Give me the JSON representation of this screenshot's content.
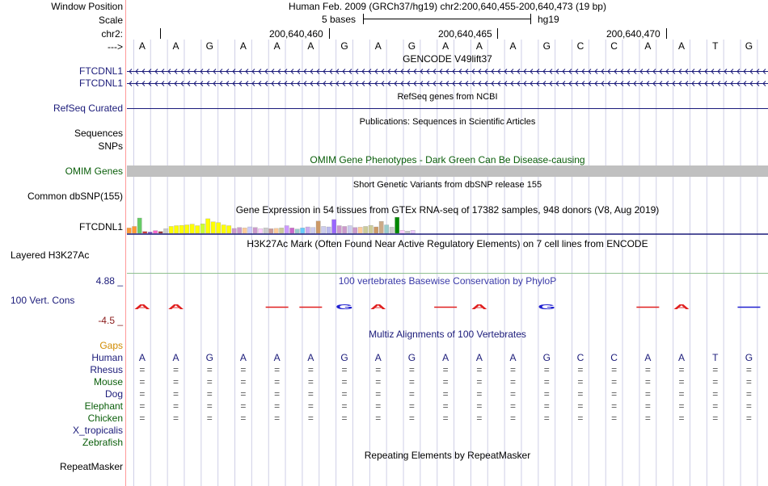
{
  "header": {
    "window_position_label": "Window Position",
    "window_position_text": "Human Feb. 2009 (GRCh37/hg19)   chr2:200,640,455-200,640,473 (19 bp)",
    "scale_label": "Scale",
    "scale_text": "5 bases",
    "scale_assembly": "hg19",
    "chrom_label": "chr2:",
    "coords": [
      "200,640,460",
      "200,640,465",
      "200,640,470"
    ],
    "strand_label": "--->"
  },
  "bases": [
    "A",
    "A",
    "G",
    "A",
    "A",
    "A",
    "G",
    "A",
    "G",
    "A",
    "A",
    "A",
    "G",
    "C",
    "C",
    "A",
    "A",
    "T",
    "G"
  ],
  "tracks": {
    "gencode_title": "GENCODE V49lift37",
    "gencode_genes": [
      "FTCDNL1",
      "FTCDNL1"
    ],
    "refseq_title": "RefSeq genes from NCBI",
    "refseq_label": "RefSeq Curated",
    "publications_title": "Publications: Sequences in Scientific Articles",
    "sequences_label": "Sequences",
    "snps_label": "SNPs",
    "omim_title": "OMIM Gene Phenotypes - Dark Green Can Be Disease-causing",
    "omim_label": "OMIM Genes",
    "dbsnp_title": "Short Genetic Variants from dbSNP release 155",
    "dbsnp_label": "Common dbSNP(155)",
    "gtex_title": "Gene Expression in 54 tissues from GTEx RNA-seq of 17382 samples, 948 donors (V8, Aug 2019)",
    "gtex_label": "FTCDNL1",
    "h3k27ac_title": "H3K27Ac Mark (Often Found Near Active Regulatory Elements) on 7 cell lines from ENCODE",
    "h3k27ac_label": "Layered H3K27Ac",
    "phylop_title": "100 vertebrates Basewise Conservation by PhyloP",
    "phylop_label": "100 Vert. Cons",
    "phylop_max": "4.88 _",
    "phylop_min": "-4.5 _",
    "multiz_title": "Multiz Alignments of 100 Vertebrates",
    "gaps_label": "Gaps",
    "species": [
      "Human",
      "Rhesus",
      "Mouse",
      "Dog",
      "Elephant",
      "Chicken",
      "X_tropicalis",
      "Zebrafish"
    ],
    "repeat_title": "Repeating Elements by RepeatMasker",
    "repeat_label": "RepeatMasker"
  },
  "gtex_values": [
    0.35,
    0.45,
    1.0,
    0.12,
    0.08,
    0.18,
    0.12,
    0.3,
    0.45,
    0.5,
    0.52,
    0.55,
    0.6,
    0.5,
    0.62,
    0.95,
    0.75,
    0.7,
    0.55,
    0.5,
    0.32,
    0.38,
    0.35,
    0.42,
    0.38,
    0.3,
    0.35,
    0.3,
    0.32,
    0.35,
    0.5,
    0.35,
    0.28,
    0.35,
    0.42,
    0.38,
    0.8,
    0.45,
    0.42,
    0.9,
    0.5,
    0.45,
    0.5,
    0.38,
    0.4,
    0.45,
    0.52,
    0.42,
    0.78,
    0.55,
    0.4,
    1.05,
    0.2,
    0.15,
    0.2
  ],
  "gtex_colors": [
    "#ff9933",
    "#ff9933",
    "#66cc66",
    "#cc3333",
    "#6633cc",
    "#ff66cc",
    "#993333",
    "#cccccc",
    "#ffff00",
    "#ffff00",
    "#ffff00",
    "#ffff00",
    "#ffff00",
    "#ffff00",
    "#ccff33",
    "#ffff00",
    "#ffff00",
    "#ffff00",
    "#ffff00",
    "#ffff00",
    "#cc99cc",
    "#cc99cc",
    "#ffcc99",
    "#ccccff",
    "#cc99cc",
    "#ffccff",
    "#cccccc",
    "#cc9999",
    "#ffcc99",
    "#cccc99",
    "#cc99ff",
    "#cc66cc",
    "#99cccc",
    "#66ccff",
    "#ccaaee",
    "#ccccee",
    "#cc9966",
    "#ccccee",
    "#bbbbee",
    "#9966ff",
    "#cc99cc",
    "#cc99cc",
    "#ccccee",
    "#cc99cc",
    "#ffcc99",
    "#cccc99",
    "#cccc99",
    "#cc9966",
    "#ccaa88",
    "#99cccc",
    "#cccccc",
    "#008800",
    "#ffccff",
    "#cccccc",
    "#eeccff"
  ],
  "phylop_peaks": [
    {
      "type": "letter",
      "base": 0,
      "char": "A",
      "color": "#e02020"
    },
    {
      "type": "letter",
      "base": 1,
      "char": "A",
      "color": "#e02020"
    },
    {
      "type": "dash",
      "base": 4,
      "color": "#e02020"
    },
    {
      "type": "dash",
      "base": 5,
      "color": "#e02020"
    },
    {
      "type": "letter",
      "base": 6,
      "char": "G",
      "color": "#2020d0"
    },
    {
      "type": "letter",
      "base": 7,
      "char": "A",
      "color": "#e02020"
    },
    {
      "type": "dash",
      "base": 9,
      "color": "#e02020"
    },
    {
      "type": "letter",
      "base": 10,
      "char": "A",
      "color": "#e02020"
    },
    {
      "type": "letter",
      "base": 12,
      "char": "G",
      "color": "#2020d0"
    },
    {
      "type": "dash",
      "base": 15,
      "color": "#e02020"
    },
    {
      "type": "letter",
      "base": 16,
      "char": "A",
      "color": "#e02020"
    },
    {
      "type": "dash",
      "base": 18,
      "color": "#2020d0"
    }
  ],
  "align_symbol": "=",
  "colors": {
    "navy": "#1b1b7a",
    "omim_bar": "#c0c0c0",
    "grid": "#cfcfe6",
    "divider": "#ff9a9a"
  }
}
